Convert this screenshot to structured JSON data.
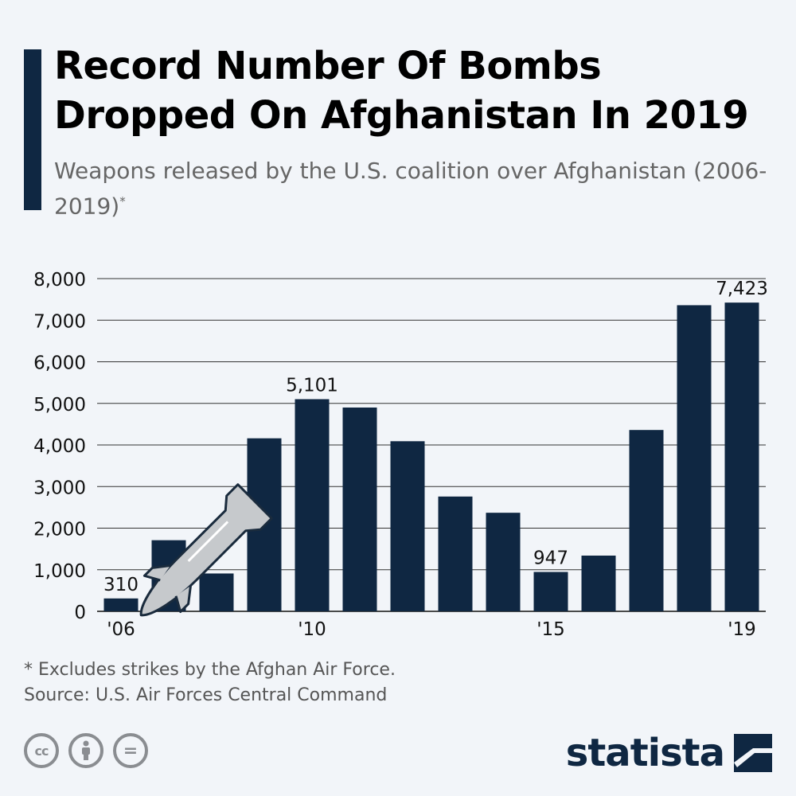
{
  "title": "Record Number Of Bombs Dropped On Afghanistan In 2019",
  "subtitle": "Weapons released by the U.S. coalition over Afghanistan (2006-2019)",
  "subtitle_mark": "*",
  "footnote": "* Excludes strikes by the Afghan Air Force.",
  "source": "Source: U.S. Air Forces Central Command",
  "logo_text": "statista",
  "license_icons": [
    "cc-icon",
    "by-person-icon",
    "nd-equals-icon"
  ],
  "colors": {
    "bar": "#0f2742",
    "background": "#f2f5f9",
    "accent": "#0f2742"
  },
  "chart_data": {
    "type": "bar",
    "title": "Record Number Of Bombs Dropped On Afghanistan In 2019",
    "categories": [
      "2006",
      "2007",
      "2008",
      "2009",
      "2010",
      "2011",
      "2012",
      "2013",
      "2014",
      "2015",
      "2016",
      "2017",
      "2018",
      "2019"
    ],
    "values": [
      310,
      1710,
      910,
      4160,
      5101,
      4900,
      4090,
      2760,
      2370,
      947,
      1340,
      4360,
      7360,
      7423
    ],
    "tick_labels": [
      "'06",
      "",
      "",
      "",
      "'10",
      "",
      "",
      "",
      "",
      "'15",
      "",
      "",
      "",
      "'19"
    ],
    "data_labels": [
      "310",
      "",
      "",
      "",
      "5,101",
      "",
      "",
      "",
      "",
      "947",
      "",
      "",
      "",
      "7,423"
    ],
    "y_ticks": [
      0,
      1000,
      2000,
      3000,
      4000,
      5000,
      6000,
      7000,
      8000
    ],
    "y_tick_labels": [
      "0",
      "1,000",
      "2,000",
      "3,000",
      "4,000",
      "5,000",
      "6,000",
      "7,000",
      "8,000"
    ],
    "ylim": [
      0,
      8000
    ],
    "xlabel": "",
    "ylabel": "",
    "grid": true,
    "legend": "none",
    "decoration": "bomb-icon"
  }
}
